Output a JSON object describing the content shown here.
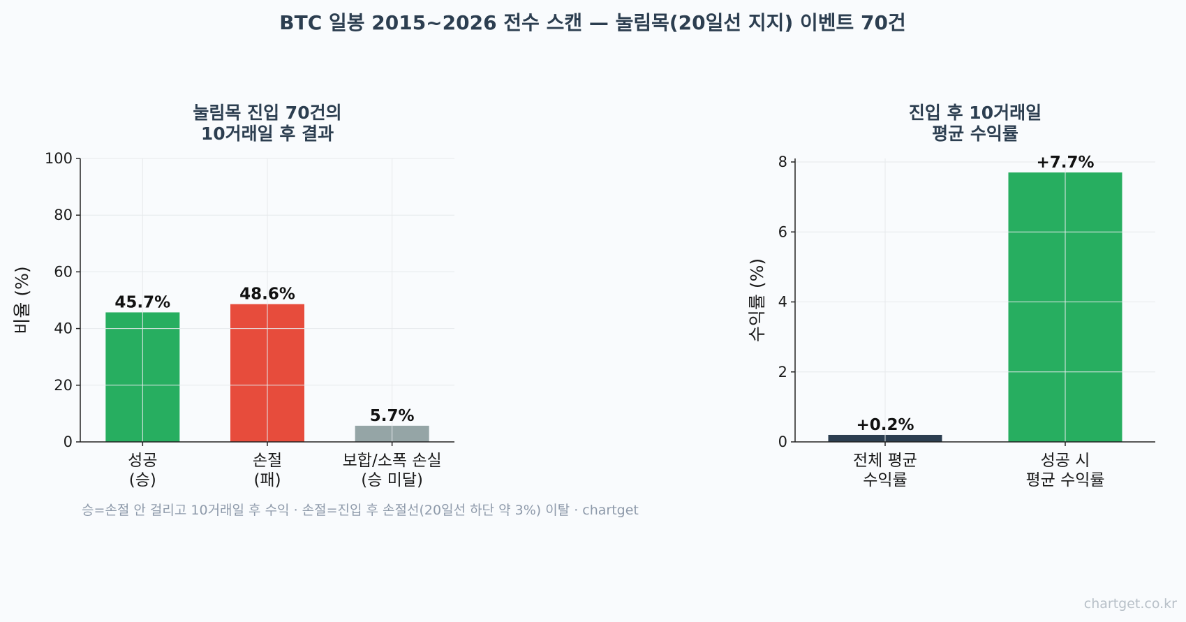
{
  "suptitle": "BTC 일봉 2015~2026 전수 스캔 — 눌림목(20일선 지지) 이벤트 70건",
  "footnote": "승=손절 안 걸리고 10거래일 후 수익 · 손절=진입 후 손절선(20일선 하단 약 3%) 이탈 · chartget",
  "watermark": "chartget.co.kr",
  "chart_data": [
    {
      "type": "bar",
      "title": [
        "눌림목 진입 70건의",
        "10거래일 후 결과"
      ],
      "ylabel": "비율 (%)",
      "ylim": [
        0,
        100
      ],
      "yticks": [
        0,
        20,
        40,
        60,
        80,
        100
      ],
      "ytick_labels": [
        "0",
        "20",
        "40",
        "60",
        "80",
        "100"
      ],
      "categories": [
        [
          "성공",
          "(승)"
        ],
        [
          "손절",
          "(패)"
        ],
        [
          "보합/소폭 손실",
          "(승 미달)"
        ]
      ],
      "values": [
        45.7,
        48.6,
        5.7
      ],
      "value_labels": [
        "45.7%",
        "48.6%",
        "5.7%"
      ],
      "colors": [
        "#27ae60",
        "#e74c3c",
        "#95a5a6"
      ],
      "grid": true
    },
    {
      "type": "bar",
      "title": [
        "진입 후 10거래일",
        "평균 수익률"
      ],
      "ylabel": "수익률 (%)",
      "ylim": [
        0,
        8.1
      ],
      "yticks": [
        0,
        2,
        4,
        6,
        8
      ],
      "ytick_labels": [
        "0",
        "2",
        "4",
        "6",
        "8"
      ],
      "categories": [
        [
          "전체 평균",
          "수익률"
        ],
        [
          "성공 시",
          "평균 수익률"
        ]
      ],
      "values": [
        0.2,
        7.7
      ],
      "value_labels": [
        "+0.2%",
        "+7.7%"
      ],
      "colors": [
        "#2c3e50",
        "#27ae60"
      ],
      "grid": true
    }
  ]
}
